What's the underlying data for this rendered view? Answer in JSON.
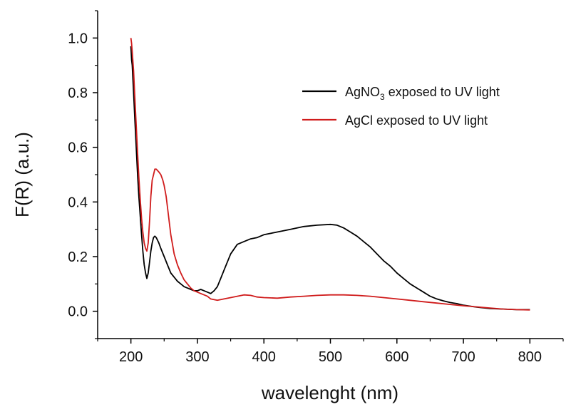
{
  "chart_data": {
    "type": "line",
    "xlabel": "wavelenght (nm)",
    "ylabel": "F(R) (a.u.)",
    "xlim": [
      150,
      850
    ],
    "ylim": [
      -0.1,
      1.1
    ],
    "xticks": [
      "200",
      "300",
      "400",
      "500",
      "600",
      "700",
      "800"
    ],
    "yticks": [
      "0.0",
      "0.2",
      "0.4",
      "0.6",
      "0.8",
      "1.0"
    ],
    "grid": false,
    "legend_position": "top-right",
    "series": [
      {
        "name_main": "AgNO",
        "name_sub": "3",
        "name_rest": " exposed to UV light",
        "color": "#000000",
        "x": [
          200,
          201,
          202,
          204,
          206,
          208,
          210,
          212,
          214,
          216,
          218,
          220,
          222,
          224,
          226,
          228,
          230,
          232,
          234,
          236,
          238,
          240,
          242,
          245,
          250,
          255,
          260,
          265,
          270,
          275,
          280,
          285,
          290,
          295,
          300,
          305,
          310,
          315,
          320,
          325,
          330,
          335,
          340,
          345,
          350,
          360,
          370,
          380,
          390,
          400,
          420,
          440,
          460,
          480,
          500,
          510,
          520,
          530,
          540,
          550,
          560,
          570,
          580,
          590,
          600,
          610,
          620,
          630,
          640,
          650,
          660,
          670,
          680,
          690,
          700,
          720,
          740,
          760,
          780,
          800
        ],
        "y": [
          0.97,
          0.92,
          0.9,
          0.8,
          0.7,
          0.6,
          0.5,
          0.42,
          0.35,
          0.28,
          0.22,
          0.17,
          0.14,
          0.12,
          0.14,
          0.18,
          0.22,
          0.25,
          0.27,
          0.275,
          0.27,
          0.26,
          0.25,
          0.23,
          0.2,
          0.17,
          0.14,
          0.125,
          0.11,
          0.1,
          0.09,
          0.085,
          0.08,
          0.075,
          0.075,
          0.08,
          0.075,
          0.07,
          0.065,
          0.075,
          0.09,
          0.12,
          0.15,
          0.18,
          0.21,
          0.245,
          0.255,
          0.265,
          0.27,
          0.28,
          0.29,
          0.3,
          0.31,
          0.315,
          0.318,
          0.315,
          0.305,
          0.29,
          0.275,
          0.255,
          0.235,
          0.21,
          0.185,
          0.165,
          0.14,
          0.12,
          0.1,
          0.085,
          0.07,
          0.055,
          0.045,
          0.038,
          0.032,
          0.028,
          0.022,
          0.015,
          0.01,
          0.008,
          0.006,
          0.006
        ]
      },
      {
        "name_main": "AgCl exposed to UV light",
        "name_sub": "",
        "name_rest": "",
        "color": "#d01c1c",
        "x": [
          200,
          201,
          202,
          204,
          206,
          208,
          210,
          212,
          214,
          216,
          218,
          220,
          222,
          224,
          226,
          228,
          230,
          232,
          234,
          236,
          238,
          240,
          242,
          245,
          248,
          250,
          253,
          256,
          260,
          265,
          270,
          275,
          280,
          285,
          290,
          295,
          300,
          305,
          310,
          315,
          320,
          330,
          340,
          350,
          360,
          370,
          380,
          390,
          400,
          420,
          440,
          460,
          480,
          500,
          520,
          540,
          560,
          580,
          600,
          620,
          640,
          660,
          680,
          700,
          720,
          740,
          760,
          780,
          800
        ],
        "y": [
          1.0,
          0.98,
          0.95,
          0.88,
          0.78,
          0.68,
          0.58,
          0.49,
          0.41,
          0.34,
          0.29,
          0.25,
          0.23,
          0.22,
          0.25,
          0.33,
          0.42,
          0.48,
          0.5,
          0.52,
          0.52,
          0.515,
          0.51,
          0.5,
          0.48,
          0.46,
          0.42,
          0.36,
          0.28,
          0.21,
          0.17,
          0.14,
          0.115,
          0.1,
          0.085,
          0.075,
          0.07,
          0.065,
          0.06,
          0.055,
          0.045,
          0.04,
          0.045,
          0.05,
          0.055,
          0.06,
          0.058,
          0.052,
          0.05,
          0.048,
          0.052,
          0.055,
          0.058,
          0.06,
          0.06,
          0.058,
          0.055,
          0.05,
          0.045,
          0.04,
          0.035,
          0.03,
          0.025,
          0.02,
          0.016,
          0.012,
          0.008,
          0.006,
          0.005
        ]
      }
    ]
  }
}
